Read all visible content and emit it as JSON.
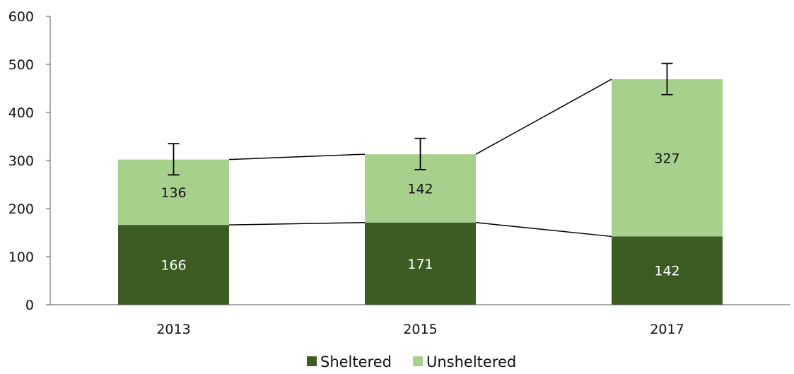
{
  "chart_data": {
    "type": "bar",
    "stacked": true,
    "categories": [
      "2013",
      "2015",
      "2017"
    ],
    "series": [
      {
        "name": "Sheltered",
        "values": [
          166,
          171,
          142
        ],
        "color": "#3d5c23",
        "label_color": "#ffffff"
      },
      {
        "name": "Unsheltered",
        "values": [
          136,
          142,
          327
        ],
        "color": "#a8d08d",
        "label_color": "#111111"
      }
    ],
    "error_bars": [
      {
        "low": 270,
        "high": 335
      },
      {
        "low": 281,
        "high": 346
      },
      {
        "low": 437,
        "high": 502
      }
    ],
    "connector_lines": true,
    "ylim": [
      0,
      600
    ],
    "yticks": [
      "0",
      "100",
      "200",
      "300",
      "400",
      "500",
      "600"
    ],
    "grid": false,
    "legend_position": "bottom"
  }
}
